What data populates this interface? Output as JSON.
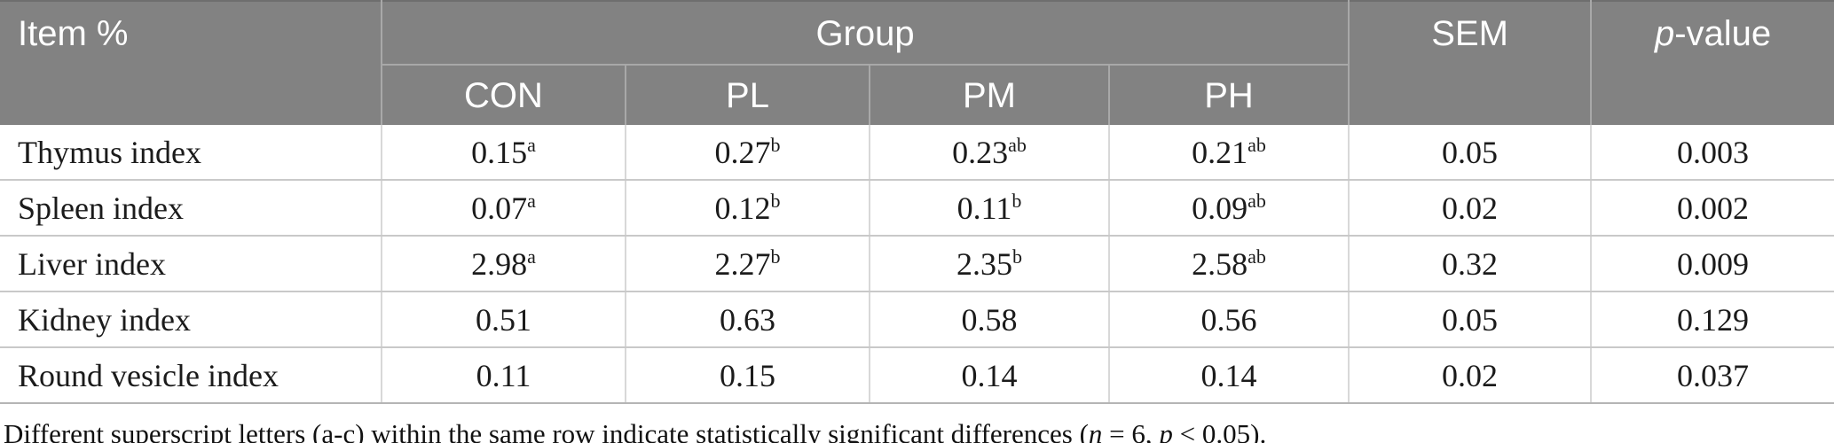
{
  "table": {
    "header": {
      "item": "Item %",
      "group": "Group",
      "sem": "SEM",
      "p_italic": "p",
      "p_rest": "-value",
      "subcolumns": [
        "CON",
        "PL",
        "PM",
        "PH"
      ]
    },
    "rows": [
      {
        "label": "Thymus index",
        "values": [
          {
            "v": "0.15",
            "sup": "a"
          },
          {
            "v": "0.27",
            "sup": "b"
          },
          {
            "v": "0.23",
            "sup": "ab"
          },
          {
            "v": "0.21",
            "sup": "ab"
          },
          {
            "v": "0.05",
            "sup": ""
          },
          {
            "v": "0.003",
            "sup": ""
          }
        ]
      },
      {
        "label": "Spleen index",
        "values": [
          {
            "v": "0.07",
            "sup": "a"
          },
          {
            "v": "0.12",
            "sup": "b"
          },
          {
            "v": "0.11",
            "sup": "b"
          },
          {
            "v": "0.09",
            "sup": "ab"
          },
          {
            "v": "0.02",
            "sup": ""
          },
          {
            "v": "0.002",
            "sup": ""
          }
        ]
      },
      {
        "label": "Liver index",
        "values": [
          {
            "v": "2.98",
            "sup": "a"
          },
          {
            "v": "2.27",
            "sup": "b"
          },
          {
            "v": "2.35",
            "sup": "b"
          },
          {
            "v": "2.58",
            "sup": "ab"
          },
          {
            "v": "0.32",
            "sup": ""
          },
          {
            "v": "0.009",
            "sup": ""
          }
        ]
      },
      {
        "label": "Kidney index",
        "values": [
          {
            "v": "0.51",
            "sup": ""
          },
          {
            "v": "0.63",
            "sup": ""
          },
          {
            "v": "0.58",
            "sup": ""
          },
          {
            "v": "0.56",
            "sup": ""
          },
          {
            "v": "0.05",
            "sup": ""
          },
          {
            "v": "0.129",
            "sup": ""
          }
        ]
      },
      {
        "label": "Round vesicle index",
        "values": [
          {
            "v": "0.11",
            "sup": ""
          },
          {
            "v": "0.15",
            "sup": ""
          },
          {
            "v": "0.14",
            "sup": ""
          },
          {
            "v": "0.14",
            "sup": ""
          },
          {
            "v": "0.02",
            "sup": ""
          },
          {
            "v": "0.037",
            "sup": ""
          }
        ]
      }
    ]
  },
  "footnote": {
    "segments": [
      {
        "text": "Different superscript letters (a-c) within the same row indicate statistically significant differences (",
        "italic": false
      },
      {
        "text": "n",
        "italic": true
      },
      {
        "text": " = 6, ",
        "italic": false
      },
      {
        "text": "p",
        "italic": true
      },
      {
        "text": " < 0.05).",
        "italic": false
      }
    ]
  },
  "colors": {
    "header_bg": "#828282",
    "header_text": "#ffffff",
    "body_text": "#1b1b1b",
    "header_grid": "#a8a8a8",
    "body_grid": "#c9c9c9"
  }
}
